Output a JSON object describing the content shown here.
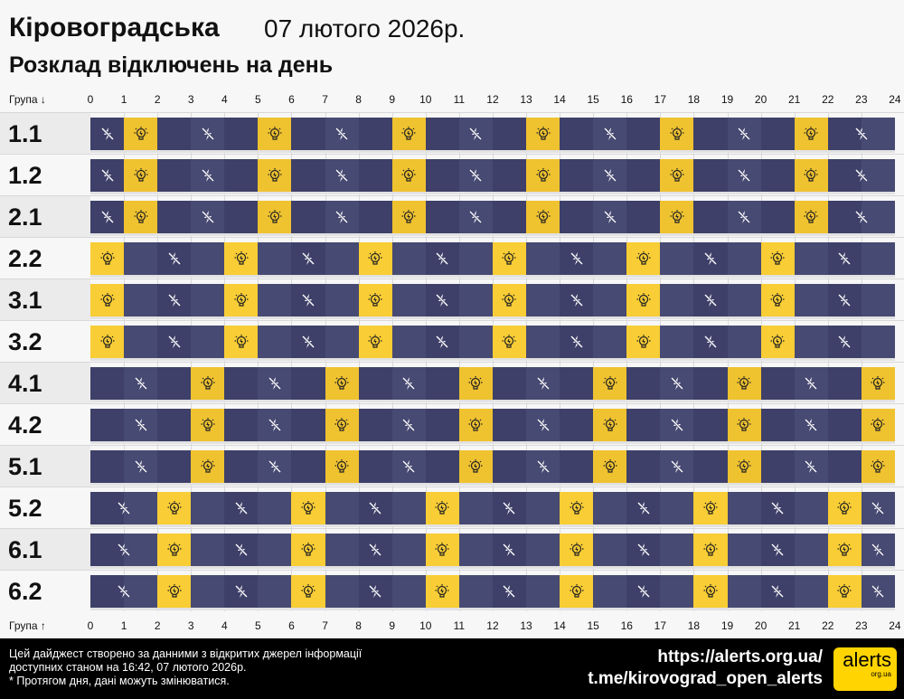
{
  "header": {
    "region": "Кіровоградська",
    "date": "07 лютого 2026р.",
    "subtitle": "Розклад відключень на день"
  },
  "axis": {
    "top_label": "Група ↓",
    "bottom_label": "Група ↑",
    "hours": [
      "0",
      "1",
      "2",
      "3",
      "4",
      "5",
      "6",
      "7",
      "8",
      "9",
      "10",
      "11",
      "12",
      "13",
      "14",
      "15",
      "16",
      "17",
      "18",
      "19",
      "20",
      "21",
      "22",
      "23",
      "24"
    ]
  },
  "colors": {
    "off": "#3e4069",
    "off_alt": "#474a72",
    "on": "#f8cd35",
    "on_alt": "#efc230"
  },
  "legend_icons": {
    "off": "power-off-icon",
    "on": "lightbulb-icon"
  },
  "groups": [
    {
      "name": "1.1",
      "on_hours": [
        1,
        5,
        9,
        13,
        17,
        21
      ]
    },
    {
      "name": "1.2",
      "on_hours": [
        1,
        5,
        9,
        13,
        17,
        21
      ]
    },
    {
      "name": "2.1",
      "on_hours": [
        1,
        5,
        9,
        13,
        17,
        21
      ]
    },
    {
      "name": "2.2",
      "on_hours": [
        0,
        4,
        8,
        12,
        16,
        20
      ]
    },
    {
      "name": "3.1",
      "on_hours": [
        0,
        4,
        8,
        12,
        16,
        20
      ]
    },
    {
      "name": "3.2",
      "on_hours": [
        0,
        4,
        8,
        12,
        16,
        20
      ]
    },
    {
      "name": "4.1",
      "on_hours": [
        3,
        7,
        11,
        15,
        19,
        23
      ]
    },
    {
      "name": "4.2",
      "on_hours": [
        3,
        7,
        11,
        15,
        19,
        23
      ]
    },
    {
      "name": "5.1",
      "on_hours": [
        3,
        7,
        11,
        15,
        19,
        23
      ]
    },
    {
      "name": "5.2",
      "on_hours": [
        2,
        6,
        10,
        14,
        18,
        22
      ]
    },
    {
      "name": "6.1",
      "on_hours": [
        2,
        6,
        10,
        14,
        18,
        22
      ]
    },
    {
      "name": "6.2",
      "on_hours": [
        2,
        6,
        10,
        14,
        18,
        22
      ]
    }
  ],
  "footer": {
    "line1": "Цей дайджест створено за данними з відкритих джерел інформації",
    "line2": "доступних станом на 16:42, 07 лютого 2026р.",
    "line3": "* Протягом дня, дані можуть змінюватися.",
    "link1": "https://alerts.org.ua/",
    "link2": "t.me/kirovograd_open_alerts",
    "logo_text": "alerts",
    "logo_sub": "org.ua"
  }
}
